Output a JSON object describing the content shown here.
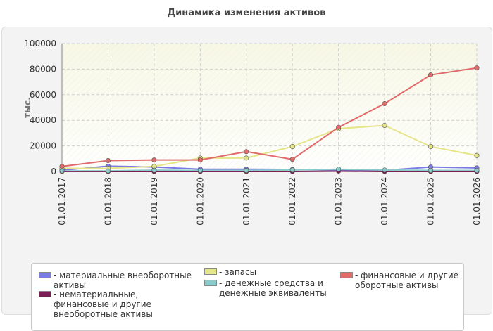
{
  "title": "Динамика изменения активов",
  "chart_data": {
    "type": "line",
    "title": "Динамика изменения активов",
    "ylabel": "тыс.",
    "xlabel": "",
    "ylim": [
      0,
      100000
    ],
    "yticks": [
      0,
      20000,
      40000,
      60000,
      80000,
      100000
    ],
    "grid": true,
    "legend_position": "bottom",
    "categories": [
      "01.01.2017",
      "01.01.2018",
      "01.01.2019",
      "01.01.2020",
      "01.01.2021",
      "01.01.2022",
      "01.01.2023",
      "01.01.2024",
      "01.01.2025",
      "01.01.2026"
    ],
    "series": [
      {
        "name": "материальные внеоборотные активы",
        "label_lines": [
          "- материальные внеоборотные",
          "активы"
        ],
        "color": "#7b7be5",
        "values": [
          1000,
          4200,
          3500,
          1800,
          1800,
          1600,
          1200,
          900,
          3500,
          2800
        ]
      },
      {
        "name": "нематериальные, финансовые и другие внеоборотные активы",
        "label_lines": [
          "- нематериальные,",
          "финансовые и другие",
          "внеоборотные активы"
        ],
        "color": "#7a1f55",
        "values": [
          0,
          0,
          0,
          0,
          0,
          0,
          300,
          0,
          0,
          0
        ]
      },
      {
        "name": "запасы",
        "label_lines": [
          "- запасы"
        ],
        "color": "#e5e58a",
        "values": [
          2500,
          2500,
          4000,
          10500,
          10500,
          19500,
          33500,
          36000,
          19500,
          12500
        ]
      },
      {
        "name": "денежные средства и денежные эквиваленты",
        "label_lines": [
          "- денежные средства и",
          "денежные эквиваленты"
        ],
        "color": "#8acaca",
        "values": [
          500,
          500,
          1000,
          800,
          800,
          1200,
          1800,
          1200,
          800,
          800
        ]
      },
      {
        "name": "финансовые и другие оборотные активы",
        "label_lines": [
          "- финансовые и другие",
          "оборотные активы"
        ],
        "color": "#e06b6b",
        "values": [
          4000,
          8500,
          9000,
          9000,
          15500,
          9500,
          34500,
          53000,
          75500,
          81000
        ]
      }
    ]
  }
}
